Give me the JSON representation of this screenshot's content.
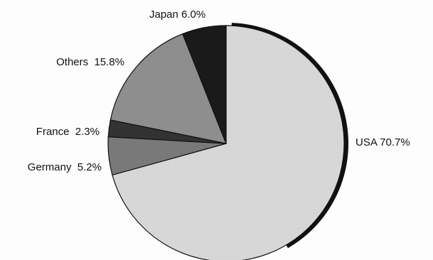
{
  "chart_data": {
    "type": "pie",
    "title": "",
    "slices": [
      {
        "label": "USA",
        "value": 70.7,
        "label_text": "USA 70.7%",
        "color": "#d9d9d9"
      },
      {
        "label": "Germany",
        "value": 5.2,
        "label_text": "Germany  5.2%",
        "color": "#7a7a7a"
      },
      {
        "label": "France",
        "value": 2.3,
        "label_text": "France  2.3%",
        "color": "#333333"
      },
      {
        "label": "Others",
        "value": 15.8,
        "label_text": "Others  15.8%",
        "color": "#8f8f8f"
      },
      {
        "label": "Japan",
        "value": 6.0,
        "label_text": "Japan 6.0%",
        "color": "#1a1a1a"
      }
    ],
    "legend": "none",
    "start_angle_deg": 0,
    "direction": "clockwise"
  },
  "colors": {
    "outline": "#111111",
    "label_text": "#111111"
  }
}
